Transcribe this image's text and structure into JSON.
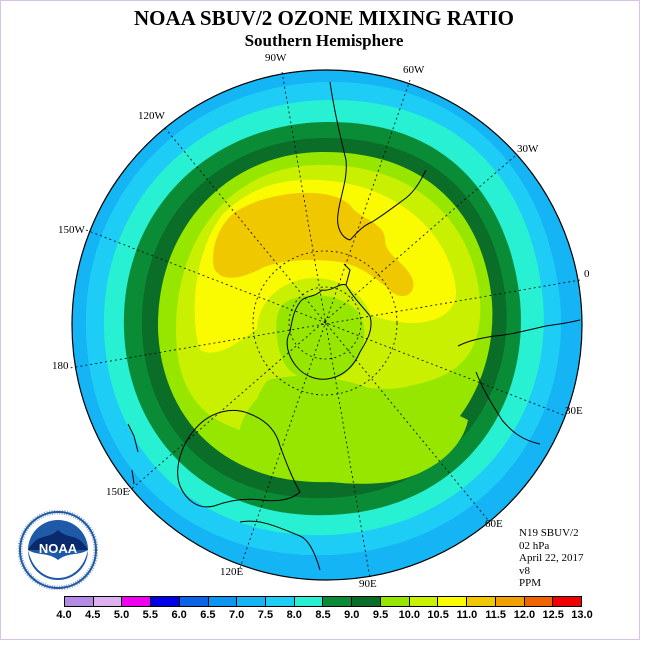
{
  "title": "NOAA SBUV/2 OZONE MIXING RATIO",
  "subtitle": "Southern Hemisphere",
  "longitude_labels": [
    {
      "id": "90w",
      "text": "90W"
    },
    {
      "id": "60w",
      "text": "60W"
    },
    {
      "id": "30w",
      "text": "30W"
    },
    {
      "id": "120w",
      "text": "120W"
    },
    {
      "id": "150w",
      "text": "150W"
    },
    {
      "id": "0",
      "text": "0"
    },
    {
      "id": "180",
      "text": "180"
    },
    {
      "id": "30e",
      "text": "30E"
    },
    {
      "id": "150e",
      "text": "150E"
    },
    {
      "id": "60e",
      "text": "60E"
    },
    {
      "id": "120e",
      "text": "120E"
    },
    {
      "id": "90e",
      "text": "90E"
    }
  ],
  "info": {
    "satellite": "N19 SBUV/2",
    "level": "02 hPa",
    "date": "April 22, 2017",
    "version": "v8",
    "units": "PPM"
  },
  "logo": {
    "text": "NOAA",
    "icon": "noaa-logo-icon"
  },
  "scale": {
    "ticks": [
      "4.0",
      "4.5",
      "5.0",
      "5.5",
      "6.0",
      "6.5",
      "7.0",
      "7.5",
      "8.0",
      "8.5",
      "9.0",
      "9.5",
      "10.0",
      "10.5",
      "11.0",
      "11.5",
      "12.0",
      "12.5",
      "13.0"
    ],
    "colors": [
      "#b48ae6",
      "#ddb0f0",
      "#f000f0",
      "#0000e6",
      "#0a64e6",
      "#0a96f0",
      "#14b4f5",
      "#1ecdf5",
      "#28f0d2",
      "#0a8c37",
      "#0a6e28",
      "#96e600",
      "#c8f000",
      "#fafa00",
      "#f0c800",
      "#f0a000",
      "#f06400",
      "#f00000",
      "#8b5a2b"
    ],
    "contour_colors": {
      "7.0": "#14b4f5",
      "7.5": "#1ecdf5",
      "8.0": "#28f0d2",
      "8.5": "#0a8c37",
      "9.0": "#0a6e28",
      "9.5": "#96e600",
      "10.0": "#c8f000",
      "10.5": "#fafa00",
      "11.0": "#f0c800"
    }
  }
}
